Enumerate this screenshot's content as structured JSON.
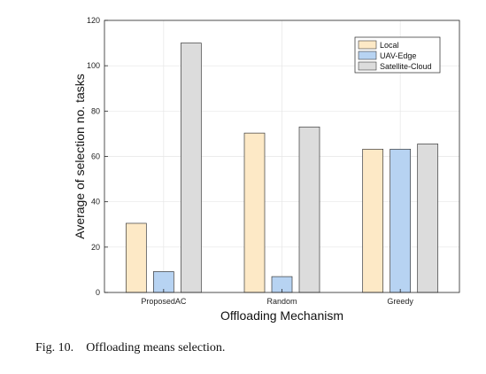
{
  "chart_data": {
    "type": "bar",
    "categories": [
      "ProposedAC",
      "Random",
      "Greedy"
    ],
    "series": [
      {
        "name": "Local",
        "values": [
          30.5,
          70.3,
          63.2
        ],
        "color": "#fde9c6"
      },
      {
        "name": "UAV-Edge",
        "values": [
          9.2,
          7.0,
          63.2
        ],
        "color": "#b7d3f2"
      },
      {
        "name": "Satellite-Cloud",
        "values": [
          110.0,
          73.0,
          65.5
        ],
        "color": "#dcdcdc"
      }
    ],
    "xlabel": "Offloading Mechanism",
    "ylabel": "Average of selection no. tasks",
    "ylim": [
      0,
      120
    ],
    "yticks": [
      0,
      20,
      40,
      60,
      80,
      100,
      120
    ],
    "grid": true,
    "legend_position": "top-right"
  },
  "caption": {
    "label": "Fig. 10.",
    "text": "Offloading means selection."
  }
}
